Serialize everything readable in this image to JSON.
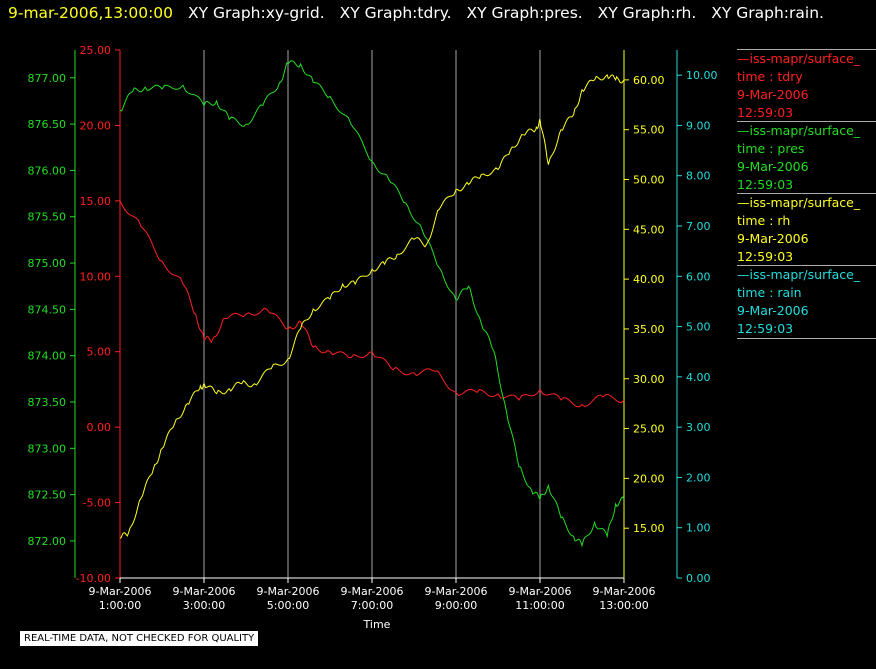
{
  "header": {
    "timestamp": "9-mar-2006,13:00:00",
    "graph_names": [
      "XY Graph:xy-grid.",
      "XY Graph:tdry.",
      "XY Graph:pres.",
      "XY Graph:rh.",
      "XY Graph:rain."
    ]
  },
  "colors": {
    "tdry": "#ff2020",
    "pres": "#22dd22",
    "rh": "#ffff22",
    "rain": "#22dddd",
    "timestamp": "#ffff22",
    "grid": "#cccccc"
  },
  "legend": [
    {
      "series": "tdry",
      "name": "iss-mapr/surface_",
      "line1": "time : tdry",
      "line2": "9-Mar-2006",
      "line3": "12:59:03"
    },
    {
      "series": "pres",
      "name": "iss-mapr/surface_",
      "line1": "time : pres",
      "line2": "9-Mar-2006",
      "line3": "12:59:03"
    },
    {
      "series": "rh",
      "name": "iss-mapr/surface_",
      "line1": "time : rh",
      "line2": "9-Mar-2006",
      "line3": "12:59:03"
    },
    {
      "series": "rain",
      "name": "iss-mapr/surface_",
      "line1": "time : rain",
      "line2": "9-Mar-2006",
      "line3": "12:59:03"
    }
  ],
  "disclaimer": "REAL-TIME DATA, NOT CHECKED FOR QUALITY",
  "chart_data": {
    "type": "line",
    "xlabel": "Time",
    "x_ticks": [
      {
        "date": "9-Mar-2006",
        "time": "1:00:00",
        "hour": 1
      },
      {
        "date": "9-Mar-2006",
        "time": "3:00:00",
        "hour": 3
      },
      {
        "date": "9-Mar-2006",
        "time": "5:00:00",
        "hour": 5
      },
      {
        "date": "9-Mar-2006",
        "time": "7:00:00",
        "hour": 7
      },
      {
        "date": "9-Mar-2006",
        "time": "9:00:00",
        "hour": 9
      },
      {
        "date": "9-Mar-2006",
        "time": "11:00:00",
        "hour": 11
      },
      {
        "date": "9-Mar-2006",
        "time": "13:00:00",
        "hour": 13
      }
    ],
    "xlim": [
      1,
      13
    ],
    "grid": "vertical",
    "axes": {
      "tdry": {
        "ylim": [
          -10,
          25
        ],
        "ticks": [
          "25.00",
          "20.00",
          "15.00",
          "10.00",
          "5.00",
          "0.00",
          "-5.00",
          "-10.00"
        ]
      },
      "pres": {
        "ylim": [
          871.6,
          877.3
        ],
        "ticks": [
          "877.00",
          "876.50",
          "876.00",
          "875.50",
          "875.00",
          "874.50",
          "874.00",
          "873.50",
          "873.00",
          "872.50",
          "872.00"
        ]
      },
      "rh": {
        "ylim": [
          10,
          63
        ],
        "ticks": [
          "60.00",
          "55.00",
          "50.00",
          "45.00",
          "40.00",
          "35.00",
          "30.00",
          "25.00",
          "20.00",
          "15.00"
        ]
      },
      "rain": {
        "ylim": [
          0,
          10.5
        ],
        "ticks": [
          "10.00",
          "9.00",
          "8.00",
          "7.00",
          "6.00",
          "5.00",
          "4.00",
          "3.00",
          "2.00",
          "1.00",
          "0.00"
        ]
      }
    },
    "series": [
      {
        "name": "tdry",
        "x": [
          1.0,
          1.5,
          2.0,
          2.5,
          2.8,
          3.0,
          3.2,
          3.5,
          4.0,
          4.5,
          5.0,
          5.3,
          5.6,
          6.0,
          6.5,
          7.0,
          7.5,
          8.0,
          8.5,
          9.0,
          9.5,
          10.0,
          10.5,
          11.0,
          11.5,
          12.0,
          12.5,
          13.0
        ],
        "y": [
          15.0,
          13.3,
          11.0,
          9.5,
          7.5,
          5.8,
          5.8,
          7.2,
          7.5,
          7.8,
          6.5,
          7.0,
          5.3,
          5.0,
          4.6,
          5.0,
          3.8,
          3.6,
          3.7,
          2.3,
          2.3,
          2.2,
          1.8,
          2.5,
          1.8,
          1.5,
          2.0,
          1.8
        ]
      },
      {
        "name": "pres",
        "x": [
          1.0,
          1.3,
          1.6,
          2.0,
          2.5,
          3.0,
          3.3,
          3.6,
          4.0,
          4.4,
          4.8,
          5.0,
          5.3,
          5.6,
          6.0,
          6.5,
          7.0,
          7.4,
          7.8,
          8.2,
          8.6,
          9.0,
          9.3,
          9.6,
          9.9,
          10.2,
          10.5,
          10.8,
          11.0,
          11.2,
          11.5,
          11.8,
          12.0,
          12.3,
          12.6,
          12.8,
          13.0
        ],
        "y": [
          876.65,
          876.85,
          876.9,
          876.88,
          876.92,
          876.7,
          876.75,
          876.55,
          876.5,
          876.7,
          876.95,
          877.15,
          877.15,
          876.95,
          876.8,
          876.5,
          876.1,
          875.9,
          875.65,
          875.35,
          874.95,
          874.6,
          874.75,
          874.35,
          874.05,
          873.4,
          872.8,
          872.55,
          872.45,
          872.6,
          872.25,
          872.05,
          871.95,
          872.2,
          872.05,
          872.4,
          872.45
        ]
      },
      {
        "name": "rh",
        "x": [
          1.0,
          1.2,
          1.5,
          1.8,
          2.0,
          2.3,
          2.6,
          2.9,
          3.0,
          3.3,
          3.6,
          3.9,
          4.2,
          4.6,
          5.0,
          5.3,
          5.6,
          6.0,
          6.3,
          6.6,
          7.0,
          7.3,
          7.6,
          8.0,
          8.3,
          8.6,
          9.0,
          9.3,
          9.6,
          10.0,
          10.3,
          10.6,
          10.9,
          11.0,
          11.2,
          11.5,
          11.8,
          12.0,
          12.3,
          12.6,
          12.8,
          13.0
        ],
        "y": [
          14.0,
          14.5,
          18.0,
          21.0,
          23.0,
          25.5,
          27.5,
          29.0,
          29.5,
          28.5,
          29.0,
          29.5,
          29.5,
          31.0,
          32.0,
          35.0,
          37.0,
          38.0,
          39.5,
          39.5,
          41.0,
          41.5,
          42.5,
          44.0,
          43.5,
          47.0,
          49.0,
          49.5,
          50.5,
          51.0,
          53.0,
          54.5,
          55.0,
          56.0,
          51.5,
          55.0,
          56.5,
          59.0,
          60.0,
          60.5,
          60.0,
          60.0
        ]
      },
      {
        "name": "rain",
        "x": [
          1.0,
          13.0
        ],
        "y": [
          0.0,
          0.0
        ]
      }
    ]
  }
}
